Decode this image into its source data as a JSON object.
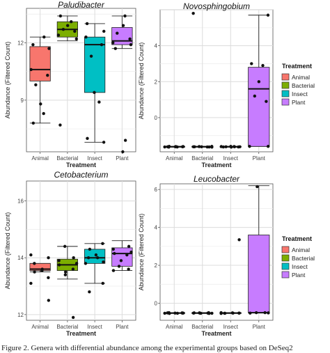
{
  "caption": "Figure 2. Genera with differential abundance among the experimental groups based on DeSeq2",
  "legend": {
    "title": "Treatment",
    "entries": [
      {
        "label": "Animal",
        "color": "#F8766D"
      },
      {
        "label": "Bacterial",
        "color": "#7CAE00"
      },
      {
        "label": "Insect",
        "color": "#00BFC4"
      },
      {
        "label": "Plant",
        "color": "#C77CFF"
      }
    ]
  },
  "chart_data": [
    {
      "type": "box",
      "title": "Paludibacter",
      "xlabel": "Treatment",
      "ylabel": "Abundance (Filtered Count)",
      "categories": [
        "Animal",
        "Bacterial",
        "Insect",
        "Plant"
      ],
      "yticks": [
        9,
        12
      ],
      "ylim": [
        6.3,
        13.8
      ],
      "grid": true,
      "boxes": [
        {
          "category": "Animal",
          "q1": 10.0,
          "median": 10.6,
          "q3": 11.8,
          "whisker_low": 7.8,
          "whisker_high": 12.3
        },
        {
          "category": "Bacterial",
          "q1": 12.3,
          "median": 12.7,
          "q3": 13.1,
          "whisker_low": 12.1,
          "whisker_high": 13.4
        },
        {
          "category": "Insect",
          "q1": 9.4,
          "median": 11.9,
          "q3": 12.3,
          "whisker_low": 6.8,
          "whisker_high": 13.0
        },
        {
          "category": "Plant",
          "q1": 11.9,
          "median": 12.1,
          "q3": 12.8,
          "whisker_low": 11.7,
          "whisker_high": 13.4
        }
      ],
      "points": [
        {
          "category": "Animal",
          "values": [
            12.3,
            11.9,
            11.7,
            10.6,
            10.3,
            9.8,
            8.8,
            8.3,
            7.8
          ]
        },
        {
          "category": "Bacterial",
          "values": [
            13.4,
            13.1,
            12.9,
            12.7,
            12.6,
            12.4,
            12.2,
            7.7
          ]
        },
        {
          "category": "Insect",
          "values": [
            13.0,
            12.6,
            12.3,
            11.9,
            11.3,
            9.4,
            8.9,
            7.0,
            6.8
          ]
        },
        {
          "category": "Plant",
          "values": [
            13.4,
            12.9,
            12.5,
            12.2,
            12.0,
            11.9,
            11.7,
            6.9,
            6.3
          ]
        }
      ]
    },
    {
      "type": "box",
      "title": "Novosphingobium",
      "xlabel": "Treatment",
      "ylabel": "Abundance (Filtered Count)",
      "categories": [
        "Animal",
        "Bacterial",
        "Insect",
        "Plant"
      ],
      "yticks": [
        0,
        2,
        4
      ],
      "ylim": [
        -1.9,
        6.0
      ],
      "grid": true,
      "boxes": [
        {
          "category": "Animal",
          "q1": -1.64,
          "median": -1.62,
          "q3": -1.6,
          "whisker_low": -1.64,
          "whisker_high": -1.6
        },
        {
          "category": "Bacterial",
          "q1": -1.64,
          "median": -1.62,
          "q3": -1.6,
          "whisker_low": -1.64,
          "whisker_high": -1.6
        },
        {
          "category": "Insect",
          "q1": -1.64,
          "median": -1.62,
          "q3": -1.6,
          "whisker_low": -1.64,
          "whisker_high": -1.6
        },
        {
          "category": "Plant",
          "q1": -1.6,
          "median": 1.6,
          "q3": 2.8,
          "whisker_low": -1.6,
          "whisker_high": 5.7
        }
      ],
      "points": [
        {
          "category": "Animal",
          "values": [
            -1.6,
            -1.62,
            -1.63,
            -1.62,
            -1.61,
            -1.63,
            -1.62,
            -1.64,
            -1.61
          ]
        },
        {
          "category": "Bacterial",
          "values": [
            5.8,
            -1.6,
            -1.62,
            -1.63,
            -1.62,
            -1.61,
            -1.63,
            -1.62,
            -1.64
          ]
        },
        {
          "category": "Insect",
          "values": [
            -1.6,
            -1.62,
            -1.63,
            -1.62,
            -1.61,
            -1.63,
            -1.62,
            -1.64,
            -1.61
          ]
        },
        {
          "category": "Plant",
          "values": [
            5.7,
            3.0,
            2.9,
            2.0,
            1.2,
            0.9,
            -1.6,
            -1.6
          ]
        }
      ]
    },
    {
      "type": "box",
      "title": "Cetobacterium",
      "xlabel": "Treatment",
      "ylabel": "Abundance (Filtered Count)",
      "categories": [
        "Animal",
        "Bacterial",
        "Insect",
        "Plant"
      ],
      "yticks": [
        12,
        14,
        16
      ],
      "ylim": [
        11.8,
        16.7
      ],
      "grid": true,
      "boxes": [
        {
          "category": "Animal",
          "q1": 13.55,
          "median": 13.6,
          "q3": 13.8,
          "whisker_low": 13.5,
          "whisker_high": 13.8
        },
        {
          "category": "Bacterial",
          "q1": 13.55,
          "median": 13.75,
          "q3": 13.95,
          "whisker_low": 13.25,
          "whisker_high": 14.4
        },
        {
          "category": "Insect",
          "q1": 13.8,
          "median": 14.0,
          "q3": 14.3,
          "whisker_low": 13.1,
          "whisker_high": 14.5
        },
        {
          "category": "Plant",
          "q1": 13.7,
          "median": 14.15,
          "q3": 14.35,
          "whisker_low": 13.55,
          "whisker_high": 14.6
        }
      ],
      "points": [
        {
          "category": "Animal",
          "values": [
            14.1,
            14.0,
            13.8,
            13.6,
            13.55,
            13.5,
            13.3,
            13.1,
            12.5
          ]
        },
        {
          "category": "Bacterial",
          "values": [
            14.4,
            14.0,
            13.9,
            13.8,
            13.75,
            13.6,
            13.5,
            13.4,
            11.9
          ]
        },
        {
          "category": "Insect",
          "values": [
            14.5,
            14.3,
            14.1,
            14.0,
            14.0,
            13.85,
            13.8,
            13.1,
            12.8
          ]
        },
        {
          "category": "Plant",
          "values": [
            14.4,
            14.3,
            14.2,
            14.15,
            14.1,
            13.9,
            13.7,
            13.6,
            13.55
          ]
        }
      ]
    },
    {
      "type": "box",
      "title": "Leucobacter",
      "xlabel": "Treatment",
      "ylabel": "Abundance (Filtered Count)",
      "categories": [
        "Animal",
        "Bacterial",
        "Insect",
        "Plant"
      ],
      "yticks": [
        0,
        2,
        4,
        6
      ],
      "ylim": [
        -0.9,
        6.3
      ],
      "grid": true,
      "boxes": [
        {
          "category": "Animal",
          "q1": -0.54,
          "median": -0.52,
          "q3": -0.5,
          "whisker_low": -0.54,
          "whisker_high": -0.5
        },
        {
          "category": "Bacterial",
          "q1": -0.54,
          "median": -0.52,
          "q3": -0.5,
          "whisker_low": -0.54,
          "whisker_high": -0.5
        },
        {
          "category": "Insect",
          "q1": -0.54,
          "median": -0.52,
          "q3": -0.5,
          "whisker_low": -0.54,
          "whisker_high": -0.5
        },
        {
          "category": "Plant",
          "q1": -0.5,
          "median": -0.5,
          "q3": 3.6,
          "whisker_low": -0.5,
          "whisker_high": 6.2
        }
      ],
      "points": [
        {
          "category": "Animal",
          "values": [
            -0.5,
            -0.52,
            -0.53,
            -0.52,
            -0.51,
            -0.53,
            -0.52,
            -0.54,
            -0.51
          ]
        },
        {
          "category": "Bacterial",
          "values": [
            -0.5,
            -0.52,
            -0.53,
            -0.52,
            -0.51,
            -0.53,
            -0.52,
            -0.54,
            -0.51
          ]
        },
        {
          "category": "Insect",
          "values": [
            3.35,
            -0.5,
            -0.52,
            -0.53,
            -0.52,
            -0.51,
            -0.53,
            -0.52,
            -0.54
          ]
        },
        {
          "category": "Plant",
          "values": [
            6.15,
            -0.5,
            -0.5,
            -0.52,
            -0.51
          ]
        }
      ]
    }
  ]
}
